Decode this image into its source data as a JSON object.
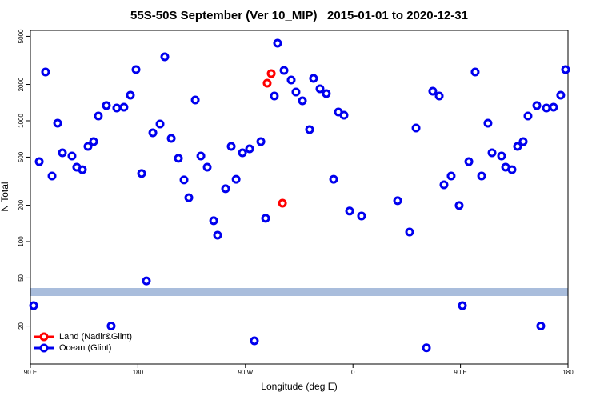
{
  "chart_data": {
    "type": "scatter",
    "title": "55S-50S September (Ver 10_MIP)   2015-01-01 to 2020-12-31",
    "x_label": "Longitude (deg E)",
    "y_label": "N Total",
    "log_y": true,
    "legend": "lower left",
    "divider": 50,
    "xlim": [
      90,
      540
    ],
    "ylim": [
      9.7,
      5600
    ],
    "xticks": [
      {
        "value": 90,
        "label": "90 E"
      },
      180,
      {
        "value": 270,
        "label": "90 W"
      },
      {
        "value": 360,
        "label": "0"
      },
      {
        "value": 450,
        "label": "90 E"
      },
      {
        "value": 540,
        "label": "180"
      }
    ],
    "yticks": [
      20,
      50,
      100,
      200,
      500,
      1000,
      2000,
      5000
    ],
    "series": [
      {
        "name": "Land (Nadir&Glint)",
        "color": "#ff0000",
        "x": [
          288.2,
          291.6,
          301.0
        ],
        "values": [
          2047,
          2460,
          208
        ]
      },
      {
        "name": "Ocean (Glint)",
        "color": "#0000ee",
        "x": [
          97.4,
          102.7,
          108.1,
          112.8,
          116.8,
          124.8,
          128.8,
          133.5,
          138.2,
          142.9,
          146.9,
          153.6,
          162.3,
          168.3,
          173.7,
          178.4,
          183.1,
          192.5,
          198.5,
          202.5,
          207.9,
          213.9,
          218.6,
          222.6,
          228.0,
          232.7,
          238.0,
          243.4,
          246.7,
          253.4,
          258.1,
          262.2,
          267.5,
          273.5,
          282.9,
          286.9,
          296.9,
          294.2,
          302.3,
          308.3,
          312.3,
          317.7,
          323.7,
          327.0,
          332.4,
          337.7,
          343.8,
          347.8,
          352.5,
          357.2,
          367.2,
          397.4,
          407.4,
          412.8,
          426.8,
          432.2,
          436.2,
          442.2,
          448.9,
          457.0,
          462.3,
          467.7,
          473.0,
          476.4,
          484.4,
          487.8,
          493.1,
          497.8,
          502.5,
          506.5,
          513.9,
          521.9,
          527.9,
          533.9,
          538.0,
          92.7,
          157.6,
          187.1,
          277.5,
          421.5,
          451.6,
          517.2
        ],
        "values": [
          459,
          2535,
          349,
          955,
          543,
          511,
          413,
          394,
          614,
          673,
          1096,
          1337,
          1276,
          1296,
          1629,
          2654,
          366,
          796,
          941,
          3388,
          715,
          489,
          324,
          231,
          1487,
          511,
          413,
          149,
          113,
          274,
          614,
          328,
          543,
          586,
          673,
          156,
          4389,
          1604,
          2614,
          2177,
          1730,
          1464,
          846,
          2244,
          1840,
          1679,
          328,
          1183,
          1112,
          179,
          163,
          218,
          120,
          872,
          1758,
          1604,
          295,
          349,
          199,
          459,
          2535,
          349,
          955,
          543,
          511,
          413,
          394,
          614,
          673,
          1096,
          1337,
          1276,
          1296,
          1629,
          2654,
          29.5,
          20,
          47.3,
          15.1,
          13.2,
          29.5,
          20
        ]
      }
    ]
  }
}
